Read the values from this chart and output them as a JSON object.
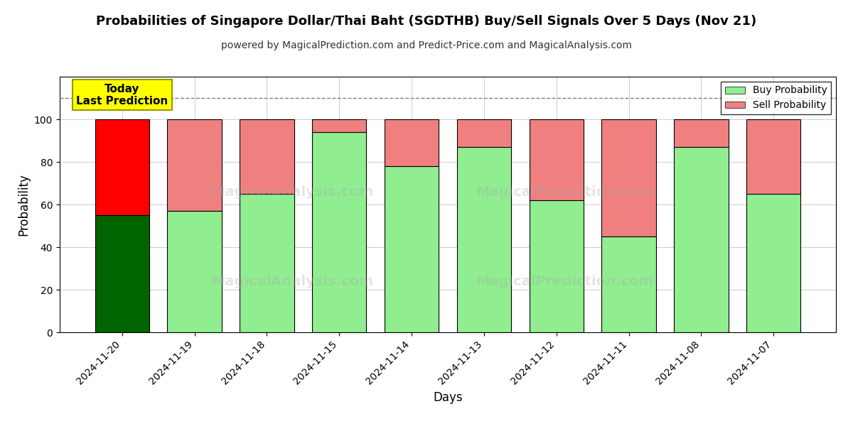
{
  "title": "Probabilities of Singapore Dollar/Thai Baht (SGDTHB) Buy/Sell Signals Over 5 Days (Nov 21)",
  "subtitle": "powered by MagicalPrediction.com and Predict-Price.com and MagicalAnalysis.com",
  "xlabel": "Days",
  "ylabel": "Probability",
  "categories": [
    "2024-11-20",
    "2024-11-19",
    "2024-11-18",
    "2024-11-15",
    "2024-11-14",
    "2024-11-13",
    "2024-11-12",
    "2024-11-11",
    "2024-11-08",
    "2024-11-07"
  ],
  "buy_values": [
    55,
    57,
    65,
    94,
    78,
    87,
    62,
    45,
    87,
    65
  ],
  "sell_values": [
    45,
    43,
    35,
    6,
    22,
    13,
    38,
    55,
    13,
    35
  ],
  "buy_colors": [
    "#006400",
    "#90EE90",
    "#90EE90",
    "#90EE90",
    "#90EE90",
    "#90EE90",
    "#90EE90",
    "#90EE90",
    "#90EE90",
    "#90EE90"
  ],
  "sell_colors": [
    "#FF0000",
    "#F08080",
    "#F08080",
    "#F08080",
    "#F08080",
    "#F08080",
    "#F08080",
    "#F08080",
    "#F08080",
    "#F08080"
  ],
  "ylim": [
    0,
    120
  ],
  "yticks": [
    0,
    20,
    40,
    60,
    80,
    100
  ],
  "dashed_line_y": 110,
  "today_label": "Today\nLast Prediction",
  "today_label_bg": "#FFFF00",
  "legend_buy_color": "#90EE90",
  "legend_sell_color": "#F08080",
  "legend_buy_label": "Buy Probability",
  "legend_sell_label": "Sell Probability",
  "background_color": "#ffffff",
  "grid_color": "#cccccc",
  "bar_edge_color": "#000000",
  "bar_linewidth": 0.8,
  "bar_width": 0.75,
  "watermark1_text": "MagicalAnalysis.com",
  "watermark2_text": "MagicalPrediction.com",
  "watermark_color": "#aaaaaa",
  "watermark_alpha": 0.3,
  "watermark_fontsize": 14
}
